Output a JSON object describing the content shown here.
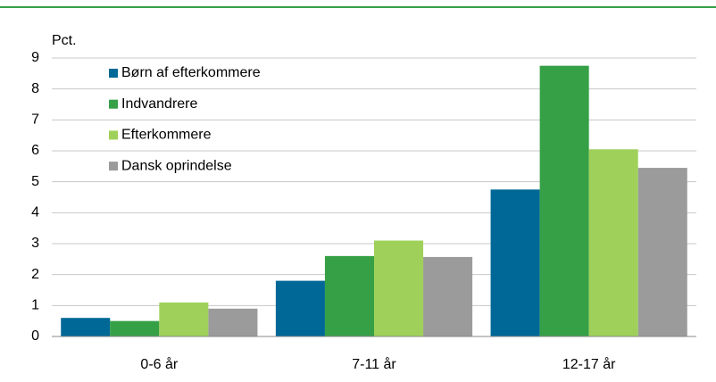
{
  "chart_data": {
    "type": "bar",
    "y_label": "Pct.",
    "categories": [
      "0-6 år",
      "7-11 år",
      "12-17 år"
    ],
    "series": [
      {
        "name": "Børn af efterkommere",
        "color": "#006896",
        "values": [
          0.6,
          1.8,
          4.75
        ]
      },
      {
        "name": "Indvandrere",
        "color": "#36a046",
        "values": [
          0.5,
          2.6,
          8.75
        ]
      },
      {
        "name": "Efterkommere",
        "color": "#9fd15a",
        "values": [
          1.1,
          3.1,
          6.05
        ]
      },
      {
        "name": "Dansk oprindelse",
        "color": "#9b9b9b",
        "values": [
          0.9,
          2.57,
          5.45
        ]
      }
    ],
    "ylim": [
      0,
      9
    ],
    "yticks": [
      0,
      1,
      2,
      3,
      4,
      5,
      6,
      7,
      8,
      9
    ],
    "grid": true,
    "legend": "upper left"
  }
}
